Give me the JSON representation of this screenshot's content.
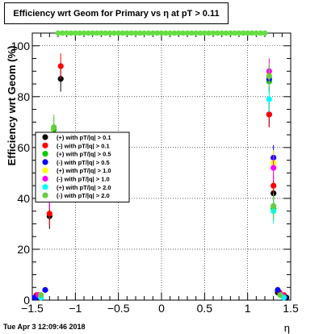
{
  "chart_data": {
    "type": "scatter",
    "title": "Efficiency wrt Geom for Primary vs   η at pT > 0.11",
    "xlabel": "η",
    "ylabel": "Efficiency wrt Geom (%)",
    "xlim": [
      -1.5,
      1.5
    ],
    "ylim": [
      0,
      105
    ],
    "x_ticks": [
      "−1.5",
      "−1",
      "−0.5",
      "0",
      "0.5",
      "1",
      "1.5"
    ],
    "y_ticks": [
      "0",
      "20",
      "40",
      "60",
      "80",
      "100"
    ],
    "grid": true,
    "legend_position": "left-middle",
    "series": [
      {
        "name": "(+) with pT/|q| > 0.1",
        "color": "#000000",
        "points": [
          {
            "x": -1.42,
            "y": 1
          },
          {
            "x": -1.3,
            "y": 33
          },
          {
            "x": -1.17,
            "y": 87
          },
          {
            "x": 1.25,
            "y": 73
          },
          {
            "x": 1.3,
            "y": 42
          },
          {
            "x": 1.35,
            "y": 3
          },
          {
            "x": 1.45,
            "y": 1
          }
        ]
      },
      {
        "name": "(-) with pT/|q| > 0.1",
        "color": "#ff0000",
        "points": [
          {
            "x": -1.45,
            "y": 2
          },
          {
            "x": -1.3,
            "y": 34
          },
          {
            "x": -1.17,
            "y": 92
          },
          {
            "x": 1.25,
            "y": 73
          },
          {
            "x": 1.3,
            "y": 45
          },
          {
            "x": 1.37,
            "y": 3
          },
          {
            "x": 1.42,
            "y": 2
          }
        ]
      },
      {
        "name": "(+) with pT/|q| > 0.5",
        "color": "#00cc00",
        "points": [
          {
            "x": -1.42,
            "y": 2
          },
          {
            "x": -1.25,
            "y": 67
          },
          {
            "x": 1.25,
            "y": 86
          },
          {
            "x": 1.3,
            "y": 36
          },
          {
            "x": 1.38,
            "y": 2
          }
        ]
      },
      {
        "name": "(-) with pT/|q| > 0.5",
        "color": "#0000ff",
        "points": [
          {
            "x": -1.47,
            "y": 1
          },
          {
            "x": -1.35,
            "y": 4
          },
          {
            "x": -1.27,
            "y": 58
          },
          {
            "x": 1.25,
            "y": 87
          },
          {
            "x": 1.3,
            "y": 56
          },
          {
            "x": 1.35,
            "y": 4
          },
          {
            "x": 1.43,
            "y": 1
          }
        ]
      },
      {
        "name": "(+) with pT/|q| > 1.0",
        "color": "#ffff00",
        "points": [
          {
            "x": -1.4,
            "y": 2
          },
          {
            "x": -1.27,
            "y": 63
          },
          {
            "x": 1.25,
            "y": 89
          },
          {
            "x": 1.3,
            "y": 54
          },
          {
            "x": 1.4,
            "y": 2
          }
        ]
      },
      {
        "name": "(-) with pT/|q| > 1.0",
        "color": "#ff00ff",
        "points": [
          {
            "x": -1.43,
            "y": 2
          },
          {
            "x": -1.3,
            "y": 41
          },
          {
            "x": -1.25,
            "y": 62
          },
          {
            "x": 1.25,
            "y": 90
          },
          {
            "x": 1.3,
            "y": 52
          },
          {
            "x": 1.4,
            "y": 2
          }
        ]
      },
      {
        "name": "(+) with pT/|q| > 2.0",
        "color": "#00ffff",
        "points": [
          {
            "x": -1.4,
            "y": 1
          },
          {
            "x": -1.27,
            "y": 55
          },
          {
            "x": 1.25,
            "y": 79
          },
          {
            "x": 1.3,
            "y": 35
          },
          {
            "x": 1.42,
            "y": 1
          }
        ]
      },
      {
        "name": "(-) with pT/|q| > 2.0",
        "color": "#66cc44",
        "points": [
          {
            "x": -1.4,
            "y": 2
          },
          {
            "x": -1.25,
            "y": 68
          },
          {
            "x": 1.25,
            "y": 88
          },
          {
            "x": 1.3,
            "y": 37
          },
          {
            "x": 1.38,
            "y": 2
          }
        ]
      }
    ],
    "top_band": {
      "color": "#66dd44",
      "y": 105,
      "x": [
        -1.2,
        -1.15,
        -1.1,
        -1.05,
        -1.0,
        -0.95,
        -0.9,
        -0.85,
        -0.8,
        -0.75,
        -0.7,
        -0.65,
        -0.6,
        -0.55,
        -0.5,
        -0.45,
        -0.4,
        -0.35,
        -0.3,
        -0.25,
        -0.2,
        -0.15,
        -0.1,
        -0.05,
        0.0,
        0.05,
        0.1,
        0.15,
        0.2,
        0.25,
        0.3,
        0.35,
        0.4,
        0.45,
        0.5,
        0.55,
        0.6,
        0.65,
        0.7,
        0.75,
        0.8,
        0.85,
        0.9,
        0.95,
        1.0,
        1.05,
        1.1,
        1.15,
        1.2
      ]
    }
  },
  "footer": {
    "date": "Tue Apr  3 12:09:46 2018"
  }
}
